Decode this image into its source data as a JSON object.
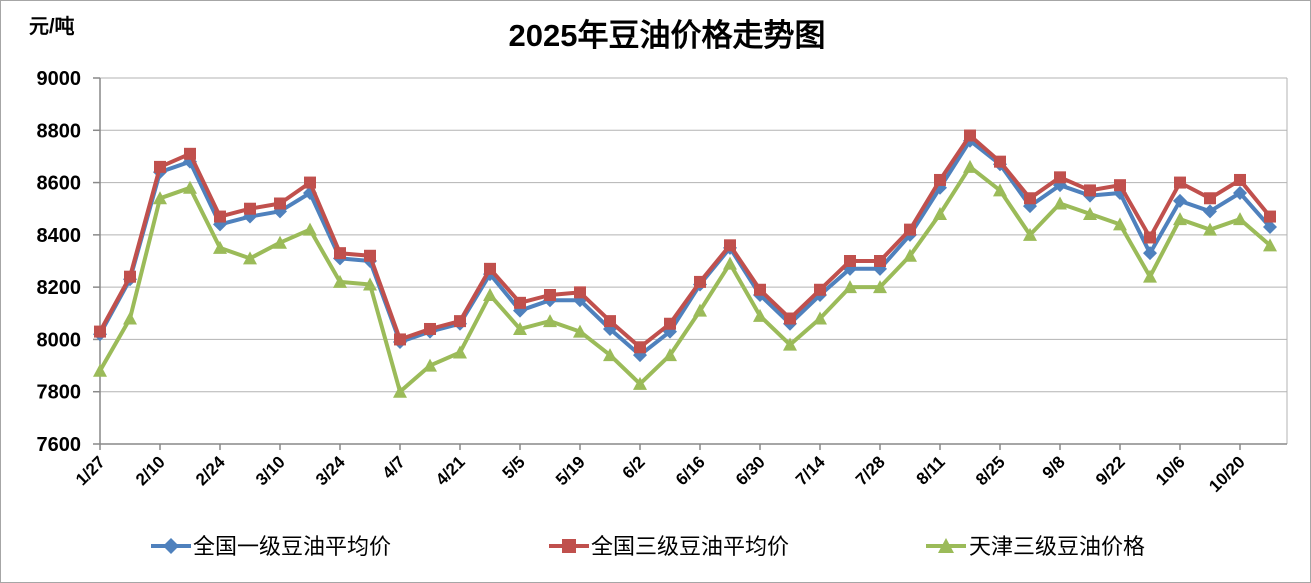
{
  "title": "2025年豆油价格走势图",
  "unit_label": "元/吨",
  "colors": {
    "grade1_blue": "#4F81BD",
    "grade3_red": "#C0504D",
    "tianjin_green": "#9BBB59",
    "gridline": "#b3b3b3",
    "axis": "#898989"
  },
  "chart_data": {
    "type": "line",
    "title": "2025年豆油价格走势图",
    "ylabel": "元/吨",
    "xlabel": "",
    "grid": true,
    "legend_position": "bottom",
    "ylim": [
      7600,
      9000
    ],
    "ytick_step": 200,
    "yticks": [
      9000,
      8800,
      8600,
      8400,
      8200,
      8000,
      7800,
      7600
    ],
    "x": [
      "1/27",
      "2/3",
      "2/10",
      "2/17",
      "2/24",
      "3/3",
      "3/10",
      "3/17",
      "3/24",
      "3/31",
      "4/7",
      "4/14",
      "4/21",
      "4/28",
      "5/5",
      "5/12",
      "5/19",
      "5/26",
      "6/2",
      "6/9",
      "6/16",
      "6/23",
      "6/30",
      "7/7",
      "7/14",
      "7/21",
      "7/28",
      "8/4",
      "8/11",
      "8/18",
      "8/25",
      "9/1",
      "9/8",
      "9/15",
      "9/22",
      "9/29",
      "10/6",
      "10/13",
      "10/20",
      "10/27"
    ],
    "x_tick_labels": [
      "1/27",
      "2/10",
      "2/24",
      "3/10",
      "3/24",
      "4/7",
      "4/21",
      "5/5",
      "5/19",
      "6/2",
      "6/16",
      "6/30",
      "7/14",
      "7/28",
      "8/11",
      "8/25",
      "9/8",
      "9/22",
      "10/6",
      "10/20"
    ],
    "series": [
      {
        "name": "全国一级豆油平均价",
        "color": "#4F81BD",
        "marker": "diamond",
        "values": [
          8020,
          8230,
          8640,
          8680,
          8440,
          8470,
          8490,
          8560,
          8310,
          8300,
          7990,
          8030,
          8060,
          8250,
          8110,
          8150,
          8150,
          8040,
          7940,
          8030,
          8210,
          8350,
          8170,
          8060,
          8170,
          8270,
          8270,
          8400,
          8580,
          8760,
          8670,
          8510,
          8590,
          8550,
          8560,
          8330,
          8530,
          8490,
          8560,
          8430
        ]
      },
      {
        "name": "全国三级豆油平均价",
        "color": "#C0504D",
        "marker": "square",
        "values": [
          8030,
          8240,
          8660,
          8710,
          8470,
          8500,
          8520,
          8600,
          8330,
          8320,
          8000,
          8040,
          8070,
          8270,
          8140,
          8170,
          8180,
          8070,
          7970,
          8060,
          8220,
          8360,
          8190,
          8080,
          8190,
          8300,
          8300,
          8420,
          8610,
          8780,
          8680,
          8540,
          8620,
          8570,
          8590,
          8390,
          8600,
          8540,
          8610,
          8470
        ]
      },
      {
        "name": "天津三级豆油价格",
        "color": "#9BBB59",
        "marker": "triangle",
        "values": [
          7880,
          8080,
          8540,
          8580,
          8350,
          8310,
          8370,
          8420,
          8220,
          8210,
          7800,
          7900,
          7950,
          8170,
          8040,
          8070,
          8030,
          7940,
          7830,
          7940,
          8110,
          8290,
          8090,
          7980,
          8080,
          8200,
          8200,
          8320,
          8480,
          8660,
          8570,
          8400,
          8520,
          8480,
          8440,
          8240,
          8460,
          8420,
          8460,
          8360
        ]
      }
    ]
  }
}
